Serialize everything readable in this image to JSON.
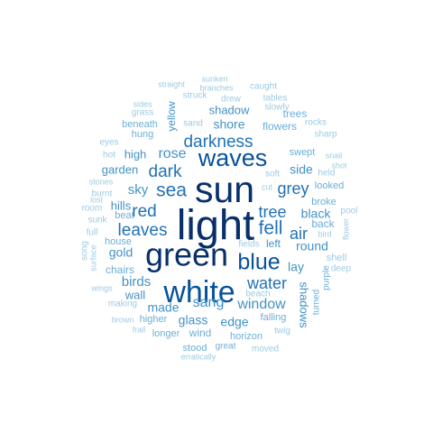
{
  "palette": {
    "darkest": "#08306b",
    "dark": "#08519c",
    "mid_dark": "#2171b5",
    "mid": "#4292c6",
    "light": "#6baed6",
    "lighter": "#9ecae1",
    "lightest": "#b7d3ea"
  },
  "words": [
    {
      "text": "light",
      "tier": "darkest"
    },
    {
      "text": "sun",
      "tier": "darkest"
    },
    {
      "text": "green",
      "tier": "darkest"
    },
    {
      "text": "white",
      "tier": "dark"
    },
    {
      "text": "waves",
      "tier": "dark"
    },
    {
      "text": "blue",
      "tier": "dark"
    },
    {
      "text": "darkness",
      "tier": "mid_dark"
    },
    {
      "text": "fell",
      "tier": "mid_dark"
    },
    {
      "text": "sea",
      "tier": "mid_dark"
    },
    {
      "text": "leaves",
      "tier": "mid_dark"
    },
    {
      "text": "dark",
      "tier": "mid_dark"
    },
    {
      "text": "red",
      "tier": "mid_dark"
    },
    {
      "text": "tree",
      "tier": "mid_dark"
    },
    {
      "text": "air",
      "tier": "mid_dark"
    },
    {
      "text": "water",
      "tier": "mid_dark"
    },
    {
      "text": "rose",
      "tier": "mid"
    },
    {
      "text": "grey",
      "tier": "mid_dark"
    },
    {
      "text": "sang",
      "tier": "mid"
    },
    {
      "text": "window",
      "tier": "mid"
    },
    {
      "text": "shadow",
      "tier": "mid"
    },
    {
      "text": "shore",
      "tier": "mid"
    },
    {
      "text": "sky",
      "tier": "mid"
    },
    {
      "text": "birds",
      "tier": "mid"
    },
    {
      "text": "gold",
      "tier": "mid"
    },
    {
      "text": "made",
      "tier": "mid"
    },
    {
      "text": "glass",
      "tier": "mid"
    },
    {
      "text": "edge",
      "tier": "mid"
    },
    {
      "text": "black",
      "tier": "mid"
    },
    {
      "text": "round",
      "tier": "mid"
    },
    {
      "text": "lay",
      "tier": "mid"
    },
    {
      "text": "side",
      "tier": "mid"
    },
    {
      "text": "hills",
      "tier": "mid"
    },
    {
      "text": "high",
      "tier": "mid"
    },
    {
      "text": "garden",
      "tier": "mid"
    },
    {
      "text": "wall",
      "tier": "mid"
    },
    {
      "text": "shadows",
      "tier": "mid"
    },
    {
      "text": "yellow",
      "tier": "mid"
    },
    {
      "text": "trees",
      "tier": "light"
    },
    {
      "text": "flowers",
      "tier": "light"
    },
    {
      "text": "swept",
      "tier": "light"
    },
    {
      "text": "left",
      "tier": "mid"
    },
    {
      "text": "back",
      "tier": "light"
    },
    {
      "text": "broke",
      "tier": "light"
    },
    {
      "text": "looked",
      "tier": "light"
    },
    {
      "text": "chairs",
      "tier": "light"
    },
    {
      "text": "house",
      "tier": "light"
    },
    {
      "text": "beat",
      "tier": "light"
    },
    {
      "text": "hung",
      "tier": "light"
    },
    {
      "text": "beneath",
      "tier": "light"
    },
    {
      "text": "wind",
      "tier": "light"
    },
    {
      "text": "higher",
      "tier": "light"
    },
    {
      "text": "longer",
      "tier": "light"
    },
    {
      "text": "falling",
      "tier": "light"
    },
    {
      "text": "horizon",
      "tier": "light"
    },
    {
      "text": "stood",
      "tier": "light"
    },
    {
      "text": "great",
      "tier": "light"
    },
    {
      "text": "moved",
      "tier": "lighter"
    },
    {
      "text": "turned",
      "tier": "light"
    },
    {
      "text": "purple",
      "tier": "light"
    },
    {
      "text": "shell",
      "tier": "lighter"
    },
    {
      "text": "deep",
      "tier": "lighter"
    },
    {
      "text": "pool",
      "tier": "lighter"
    },
    {
      "text": "bird",
      "tier": "lighter"
    },
    {
      "text": "flower",
      "tier": "lighter"
    },
    {
      "text": "held",
      "tier": "lighter"
    },
    {
      "text": "snail",
      "tier": "lighter"
    },
    {
      "text": "shot",
      "tier": "lighter"
    },
    {
      "text": "sharp",
      "tier": "lighter"
    },
    {
      "text": "rocks",
      "tier": "lighter"
    },
    {
      "text": "tables",
      "tier": "lighter"
    },
    {
      "text": "slowly",
      "tier": "lighter"
    },
    {
      "text": "caught",
      "tier": "lighter"
    },
    {
      "text": "drew",
      "tier": "lighter"
    },
    {
      "text": "sunken",
      "tier": "lighter"
    },
    {
      "text": "branches",
      "tier": "lighter"
    },
    {
      "text": "straight",
      "tier": "lighter"
    },
    {
      "text": "struck",
      "tier": "lighter"
    },
    {
      "text": "sides",
      "tier": "lighter"
    },
    {
      "text": "grass",
      "tier": "lighter"
    },
    {
      "text": "sand",
      "tier": "lighter"
    },
    {
      "text": "eyes",
      "tier": "lighter"
    },
    {
      "text": "hot",
      "tier": "lighter"
    },
    {
      "text": "stones",
      "tier": "lighter"
    },
    {
      "text": "burnt",
      "tier": "lighter"
    },
    {
      "text": "room",
      "tier": "lighter"
    },
    {
      "text": "lost",
      "tier": "lighter"
    },
    {
      "text": "sunk",
      "tier": "lighter"
    },
    {
      "text": "full",
      "tier": "lighter"
    },
    {
      "text": "song",
      "tier": "lighter"
    },
    {
      "text": "surface",
      "tier": "lighter"
    },
    {
      "text": "wings",
      "tier": "lighter"
    },
    {
      "text": "making",
      "tier": "lighter"
    },
    {
      "text": "brown",
      "tier": "lighter"
    },
    {
      "text": "frail",
      "tier": "lighter"
    },
    {
      "text": "twig",
      "tier": "lighter"
    },
    {
      "text": "beach",
      "tier": "lighter"
    },
    {
      "text": "fields",
      "tier": "lighter"
    },
    {
      "text": "soft",
      "tier": "lighter"
    },
    {
      "text": "cut",
      "tier": "lighter"
    },
    {
      "text": "erratically",
      "tier": "lighter"
    }
  ]
}
